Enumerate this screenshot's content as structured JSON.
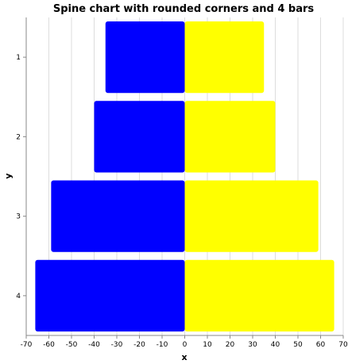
{
  "chart_data": {
    "type": "bar",
    "orientation": "horizontal",
    "title": "Spine chart with rounded corners and 4 bars",
    "xlabel": "x",
    "ylabel": "y",
    "categories": [
      "1",
      "2",
      "3",
      "4"
    ],
    "series": [
      {
        "color": "#0000ff",
        "values": [
          -35,
          -40,
          -59,
          -66
        ]
      },
      {
        "color": "#ffff00",
        "values": [
          35,
          40,
          59,
          66
        ]
      }
    ],
    "xlim": [
      -70,
      70
    ],
    "xticks": [
      -70,
      -60,
      -50,
      -40,
      -30,
      -20,
      -10,
      0,
      10,
      20,
      30,
      40,
      50,
      60,
      70
    ],
    "grid": true,
    "bar_corner": "rounded"
  }
}
